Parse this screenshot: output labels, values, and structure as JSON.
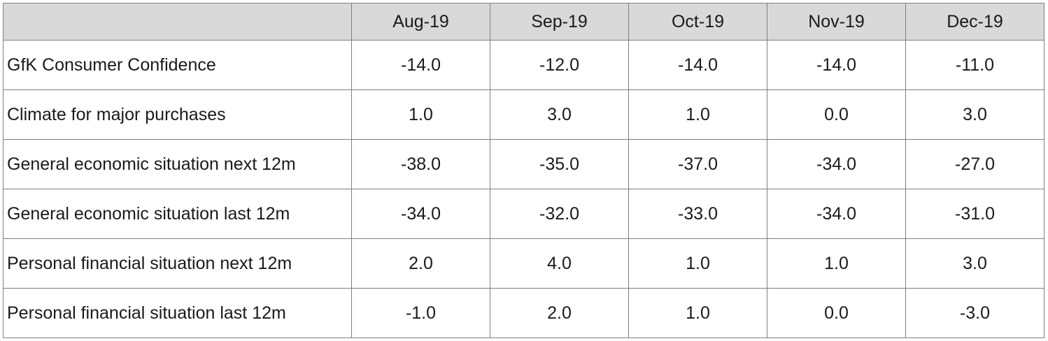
{
  "chart_data": {
    "type": "table",
    "columns": [
      "",
      "Aug-19",
      "Sep-19",
      "Oct-19",
      "Nov-19",
      "Dec-19"
    ],
    "rows": [
      {
        "label": "GfK Consumer Confidence",
        "values": [
          "-14.0",
          "-12.0",
          "-14.0",
          "-14.0",
          "-11.0"
        ]
      },
      {
        "label": "Climate for major purchases",
        "values": [
          "1.0",
          "3.0",
          "1.0",
          "0.0",
          "3.0"
        ]
      },
      {
        "label": "General economic situation next 12m",
        "values": [
          "-38.0",
          "-35.0",
          "-37.0",
          "-34.0",
          "-27.0"
        ]
      },
      {
        "label": "General economic situation last 12m",
        "values": [
          "-34.0",
          "-32.0",
          "-33.0",
          "-34.0",
          "-31.0"
        ]
      },
      {
        "label": "Personal financial situation next 12m",
        "values": [
          "2.0",
          "4.0",
          "1.0",
          "1.0",
          "3.0"
        ]
      },
      {
        "label": "Personal financial situation last 12m",
        "values": [
          "-1.0",
          "2.0",
          "1.0",
          "0.0",
          "-3.0"
        ]
      }
    ],
    "colors": {
      "header_bg": "#d9d9d9",
      "border": "#7f7f7f",
      "text": "#1a1a1a"
    }
  }
}
